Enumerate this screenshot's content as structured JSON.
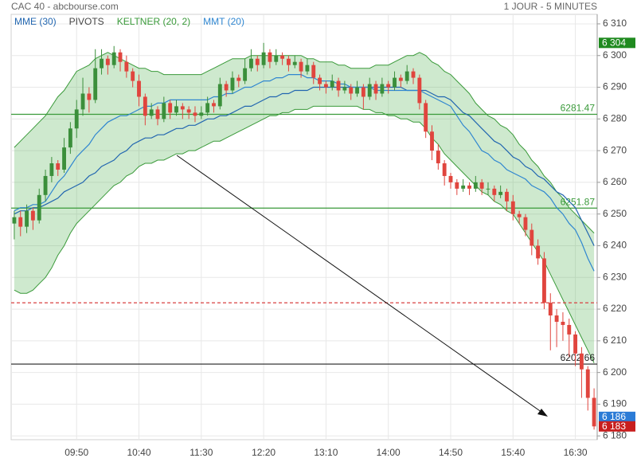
{
  "chart_data": {
    "type": "candlestick",
    "title": "CAC 40 - abcbourse.com",
    "subtitle": "1 JOUR - 5 MINUTES",
    "categories": [
      null,
      null,
      null,
      null,
      null,
      null,
      null,
      null,
      null,
      null,
      "09:50",
      null,
      null,
      null,
      null,
      null,
      null,
      null,
      null,
      null,
      "10:40",
      null,
      null,
      null,
      null,
      null,
      null,
      null,
      null,
      null,
      "11:30",
      null,
      null,
      null,
      null,
      null,
      null,
      null,
      null,
      null,
      "12:20",
      null,
      null,
      null,
      null,
      null,
      null,
      null,
      null,
      null,
      "13:10",
      null,
      null,
      null,
      null,
      null,
      null,
      null,
      null,
      null,
      "14:00",
      null,
      null,
      null,
      null,
      null,
      null,
      null,
      null,
      null,
      "14:50",
      null,
      null,
      null,
      null,
      null,
      null,
      null,
      null,
      null,
      "15:40",
      null,
      null,
      null,
      null,
      null,
      null,
      null,
      null,
      null,
      "16:30",
      null,
      null,
      null
    ],
    "candles": {
      "open": [
        6247,
        6249,
        6246,
        6251,
        6248,
        6256,
        6262,
        6266,
        6264,
        6271,
        6277,
        6283,
        6288,
        6286,
        6296,
        6299,
        6297,
        6301,
        6298,
        6295,
        6292,
        6287,
        6281,
        6283,
        6280,
        6285,
        6282,
        6284,
        6283,
        6282,
        6281,
        6282,
        6285,
        6284,
        6291,
        6289,
        6293,
        6292,
        6296,
        6299,
        6297,
        6301,
        6298,
        6300,
        6299,
        6297,
        6298,
        6295,
        6297,
        6293,
        6291,
        6290,
        6292,
        6289,
        6290,
        6288,
        6290,
        6287,
        6291,
        6288,
        6291,
        6290,
        6293,
        6292,
        6295,
        6293,
        6285,
        6276,
        6270,
        6266,
        6262,
        6260,
        6258,
        6259,
        6258,
        6260,
        6258,
        6258,
        6256,
        6257,
        6254,
        6250,
        6249,
        6245,
        6240,
        6236,
        6222,
        6218,
        6216,
        6215,
        6212,
        6206,
        6201,
        6192
      ],
      "high": [
        6251,
        6251,
        6253,
        6252,
        6258,
        6264,
        6268,
        6267,
        6274,
        6279,
        6286,
        6293,
        6290,
        6302,
        6302,
        6300,
        6303,
        6302,
        6300,
        6296,
        6294,
        6288,
        6285,
        6284,
        6287,
        6286,
        6286,
        6285,
        6284,
        6284,
        6284,
        6287,
        6286,
        6293,
        6292,
        6295,
        6294,
        6299,
        6302,
        6300,
        6304,
        6302,
        6302,
        6301,
        6300,
        6300,
        6299,
        6299,
        6298,
        6294,
        6292,
        6294,
        6293,
        6292,
        6291,
        6292,
        6291,
        6293,
        6292,
        6293,
        6292,
        6295,
        6294,
        6297,
        6296,
        6294,
        6286,
        6278,
        6272,
        6267,
        6263,
        6261,
        6261,
        6260,
        6262,
        6261,
        6260,
        6259,
        6259,
        6258,
        6256,
        6251,
        6250,
        6247,
        6242,
        6238,
        6225,
        6220,
        6219,
        6217,
        6213,
        6208,
        6202,
        6195
      ],
      "low": [
        6242,
        6243,
        6244,
        6245,
        6247,
        6254,
        6260,
        6262,
        6263,
        6269,
        6274,
        6281,
        6282,
        6285,
        6294,
        6294,
        6296,
        6295,
        6293,
        6290,
        6284,
        6278,
        6280,
        6278,
        6279,
        6280,
        6281,
        6280,
        6280,
        6279,
        6280,
        6281,
        6282,
        6283,
        6287,
        6288,
        6290,
        6291,
        6295,
        6295,
        6296,
        6296,
        6297,
        6297,
        6295,
        6296,
        6293,
        6294,
        6291,
        6289,
        6288,
        6289,
        6287,
        6288,
        6286,
        6287,
        6283,
        6286,
        6286,
        6287,
        6288,
        6289,
        6290,
        6291,
        6291,
        6283,
        6274,
        6267,
        6264,
        6259,
        6258,
        6256,
        6257,
        6256,
        6257,
        6256,
        6256,
        6254,
        6255,
        6251,
        6248,
        6247,
        6243,
        6237,
        6234,
        6220,
        6207,
        6208,
        6210,
        6205,
        6202,
        6192,
        6188,
        6182
      ],
      "close": [
        6249,
        6246,
        6251,
        6248,
        6256,
        6262,
        6266,
        6264,
        6271,
        6277,
        6283,
        6288,
        6286,
        6296,
        6299,
        6297,
        6301,
        6298,
        6295,
        6292,
        6287,
        6281,
        6283,
        6280,
        6285,
        6282,
        6284,
        6283,
        6282,
        6281,
        6282,
        6285,
        6284,
        6291,
        6289,
        6293,
        6292,
        6296,
        6299,
        6297,
        6301,
        6298,
        6300,
        6299,
        6297,
        6298,
        6295,
        6297,
        6293,
        6291,
        6290,
        6292,
        6289,
        6290,
        6288,
        6290,
        6287,
        6291,
        6288,
        6291,
        6290,
        6293,
        6292,
        6295,
        6293,
        6285,
        6276,
        6270,
        6266,
        6262,
        6260,
        6258,
        6259,
        6258,
        6260,
        6258,
        6258,
        6256,
        6257,
        6254,
        6250,
        6249,
        6245,
        6240,
        6236,
        6222,
        6218,
        6216,
        6215,
        6212,
        6206,
        6201,
        6192,
        6183
      ]
    },
    "up_color": "#3b8f3b",
    "down_color": "#e0453e",
    "series": [
      {
        "name": "MME (30)",
        "color": "#2266b0",
        "values": [
          6250,
          6251,
          6251,
          6252,
          6252,
          6253,
          6254,
          6255,
          6257,
          6258,
          6259,
          6260,
          6262,
          6263,
          6265,
          6266,
          6267,
          6269,
          6270,
          6272,
          6273,
          6274,
          6274,
          6275,
          6275,
          6276,
          6277,
          6277,
          6278,
          6278,
          6279,
          6280,
          6280,
          6281,
          6281,
          6282,
          6283,
          6284,
          6284,
          6285,
          6286,
          6287,
          6287,
          6288,
          6288,
          6289,
          6289,
          6289,
          6290,
          6290,
          6290,
          6290,
          6290,
          6290,
          6290,
          6290,
          6290,
          6290,
          6290,
          6290,
          6290,
          6290,
          6290,
          6289,
          6289,
          6289,
          6289,
          6288,
          6287,
          6287,
          6286,
          6284,
          6282,
          6281,
          6279,
          6277,
          6275,
          6273,
          6272,
          6270,
          6268,
          6267,
          6265,
          6264,
          6262,
          6261,
          6259,
          6257,
          6256,
          6254,
          6252,
          6248,
          6244,
          6240
        ]
      },
      {
        "name": "PIVOTS",
        "color": "#444444",
        "levels": [
          {
            "value": 6281.47,
            "color": "#3a9a3a",
            "dashed": false,
            "show_label": true
          },
          {
            "value": 6251.87,
            "color": "#3a9a3a",
            "dashed": false,
            "show_label": true
          },
          {
            "value": 6222,
            "color": "#d94040",
            "dashed": true,
            "show_label": false
          },
          {
            "value": 6202.66,
            "color": "#222222",
            "dashed": false,
            "show_label": true
          }
        ]
      },
      {
        "name": "KELTNER (20, 2)",
        "color": "#3a9a3a",
        "fill": "rgba(80,175,80,0.28)",
        "upper": [
          6271,
          6273,
          6275,
          6277,
          6279,
          6281,
          6284,
          6287,
          6289,
          6292,
          6295,
          6296,
          6297,
          6299,
          6300,
          6301,
          6300,
          6299,
          6298,
          6297,
          6296,
          6296,
          6295,
          6295,
          6294,
          6294,
          6294,
          6294,
          6294,
          6294,
          6294,
          6295,
          6296,
          6297,
          6298,
          6299,
          6299,
          6299,
          6300,
          6300,
          6300,
          6300,
          6300,
          6300,
          6300,
          6300,
          6300,
          6299,
          6299,
          6298,
          6298,
          6298,
          6297,
          6297,
          6296,
          6296,
          6296,
          6296,
          6297,
          6297,
          6297,
          6298,
          6299,
          6300,
          6300,
          6301,
          6300,
          6298,
          6297,
          6295,
          6294,
          6292,
          6290,
          6288,
          6285,
          6283,
          6281,
          6280,
          6278,
          6277,
          6275,
          6272,
          6270,
          6267,
          6265,
          6262,
          6260,
          6257,
          6255,
          6252,
          6250,
          6248,
          6246,
          6244
        ],
        "lower": [
          6226,
          6225,
          6225,
          6226,
          6228,
          6230,
          6233,
          6237,
          6240,
          6244,
          6247,
          6249,
          6251,
          6253,
          6255,
          6257,
          6259,
          6260,
          6262,
          6263,
          6265,
          6266,
          6266,
          6267,
          6267,
          6268,
          6269,
          6269,
          6270,
          6270,
          6271,
          6272,
          6273,
          6273,
          6274,
          6275,
          6276,
          6277,
          6278,
          6279,
          6280,
          6281,
          6281,
          6282,
          6282,
          6283,
          6283,
          6283,
          6284,
          6284,
          6284,
          6284,
          6284,
          6284,
          6284,
          6284,
          6283,
          6283,
          6282,
          6282,
          6281,
          6281,
          6280,
          6280,
          6279,
          6279,
          6277,
          6274,
          6272,
          6269,
          6267,
          6265,
          6263,
          6261,
          6259,
          6257,
          6256,
          6254,
          6253,
          6251,
          6250,
          6247,
          6244,
          6241,
          6238,
          6235,
          6231,
          6227,
          6223,
          6219,
          6215,
          6211,
          6207,
          6203
        ]
      },
      {
        "name": "MMT (20)",
        "color": "#2f86d0",
        "values": [
          6251,
          6252,
          6252,
          6253,
          6253,
          6254,
          6257,
          6260,
          6262,
          6265,
          6268,
          6270,
          6272,
          6275,
          6277,
          6279,
          6280,
          6281,
          6281,
          6282,
          6283,
          6284,
          6284,
          6285,
          6285,
          6286,
          6286,
          6286,
          6286,
          6286,
          6286,
          6286,
          6287,
          6287,
          6288,
          6288,
          6289,
          6290,
          6290,
          6291,
          6292,
          6292,
          6293,
          6293,
          6294,
          6294,
          6294,
          6293,
          6293,
          6292,
          6292,
          6292,
          6291,
          6291,
          6290,
          6290,
          6290,
          6290,
          6289,
          6289,
          6289,
          6289,
          6289,
          6289,
          6289,
          6289,
          6288,
          6287,
          6286,
          6285,
          6284,
          6281,
          6278,
          6276,
          6273,
          6270,
          6269,
          6267,
          6266,
          6264,
          6263,
          6262,
          6261,
          6259,
          6258,
          6257,
          6255,
          6252,
          6250,
          6247,
          6245,
          6241,
          6236,
          6232
        ]
      }
    ],
    "price_tags": [
      {
        "value": 6304,
        "label": "6 304",
        "color": "#1f8a1f"
      },
      {
        "value": 6186,
        "label": "6 186",
        "color": "#2b7bd6"
      },
      {
        "value": 6183,
        "label": "6 183",
        "color": "#c81e1e"
      }
    ],
    "ylim": [
      6178.8,
      6312.5
    ],
    "yticks": [
      {
        "value": 6180,
        "label": "6 180"
      },
      {
        "value": 6190,
        "label": "6 190"
      },
      {
        "value": 6200,
        "label": "6 200"
      },
      {
        "value": 6210,
        "label": "6 210"
      },
      {
        "value": 6220,
        "label": "6 220"
      },
      {
        "value": 6230,
        "label": "6 230"
      },
      {
        "value": 6240,
        "label": "6 240"
      },
      {
        "value": 6250,
        "label": "6 250"
      },
      {
        "value": 6260,
        "label": "6 260"
      },
      {
        "value": 6270,
        "label": "6 270"
      },
      {
        "value": 6280,
        "label": "6 280"
      },
      {
        "value": 6290,
        "label": "6 290"
      },
      {
        "value": 6300,
        "label": "6 300"
      },
      {
        "value": 6310,
        "label": "6 310"
      }
    ],
    "grid": true
  }
}
